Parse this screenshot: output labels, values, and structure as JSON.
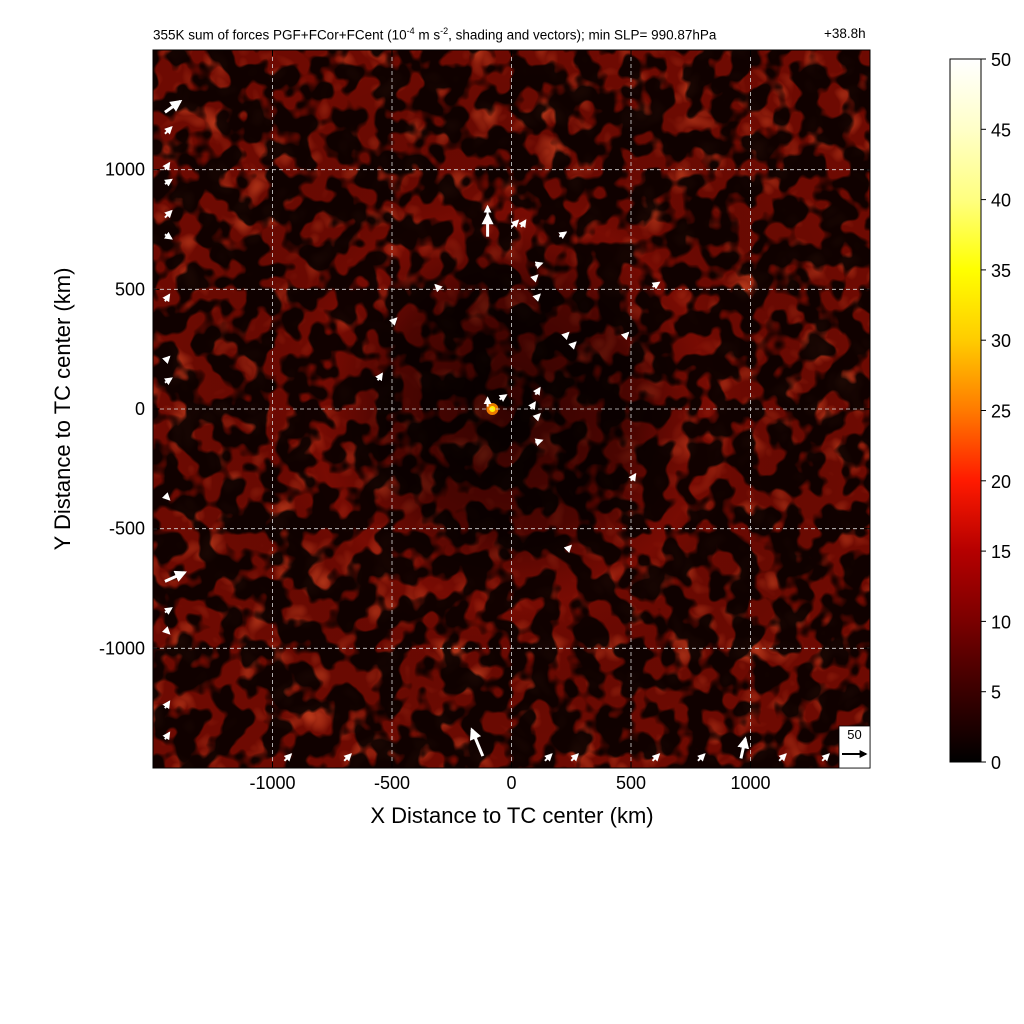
{
  "title": {
    "prefix": "355K sum of forces PGF+FCor+FCent (10",
    "exp1": "-4",
    "mid": " m s",
    "exp2": "-2",
    "suffix": ", shading and vectors); min SLP= 990.87hPa",
    "time": "+38.8h"
  },
  "chart_data": {
    "type": "heatmap",
    "xlabel": "X Distance to TC center (km)",
    "ylabel": "Y Distance to TC center (km)",
    "xlim": [
      -1500,
      1500
    ],
    "ylim": [
      -1500,
      1500
    ],
    "xticks": [
      -1000,
      -500,
      0,
      500,
      1000
    ],
    "yticks": [
      -1000,
      -500,
      0,
      500,
      1000
    ],
    "xtick_labels": [
      "-1000",
      "-500",
      "0",
      "500",
      "1000"
    ],
    "ytick_labels": [
      "-1000",
      "-500",
      "0",
      "500",
      "1000"
    ],
    "grid": true,
    "colorbar": {
      "range": [
        0,
        50
      ],
      "ticks": [
        0,
        5,
        10,
        15,
        20,
        25,
        30,
        35,
        40,
        45,
        50
      ],
      "tick_labels": [
        "0",
        "5",
        "10",
        "15",
        "20",
        "25",
        "30",
        "35",
        "40",
        "45",
        "50"
      ],
      "colormap": [
        "#000000",
        "#3a0000",
        "#7a0000",
        "#b50000",
        "#ff1a00",
        "#ff7a00",
        "#ffcc00",
        "#ffff00",
        "#ffff80",
        "#ffffc8",
        "#ffffff"
      ],
      "colormap_stops": [
        0,
        5,
        10,
        15,
        20,
        25,
        30,
        35,
        40,
        45,
        50
      ]
    },
    "max_feature": {
      "x": -80,
      "y": 0,
      "value": 30
    },
    "vector_reference": {
      "label": "50",
      "magnitude": 50
    },
    "vectors": [
      {
        "x": -100,
        "y": 720,
        "u": 0,
        "v": 1.0
      },
      {
        "x": -100,
        "y": 810,
        "u": 0,
        "v": 0.4
      },
      {
        "x": 0,
        "y": 760,
        "u": 0.3,
        "v": 0.3
      },
      {
        "x": 40,
        "y": 760,
        "u": 0.2,
        "v": 0.3
      },
      {
        "x": 200,
        "y": 720,
        "u": 0.3,
        "v": 0.2
      },
      {
        "x": 100,
        "y": 600,
        "u": 0.3,
        "v": 0.1
      },
      {
        "x": 90,
        "y": 540,
        "u": 0.2,
        "v": 0.2
      },
      {
        "x": 100,
        "y": 460,
        "u": 0.2,
        "v": 0.2
      },
      {
        "x": -300,
        "y": 500,
        "u": -0.2,
        "v": 0.2
      },
      {
        "x": 590,
        "y": 510,
        "u": 0.3,
        "v": 0.2
      },
      {
        "x": -500,
        "y": 360,
        "u": 0.2,
        "v": 0.2
      },
      {
        "x": 220,
        "y": 300,
        "u": 0.2,
        "v": 0.2
      },
      {
        "x": 250,
        "y": 260,
        "u": 0.2,
        "v": 0.2
      },
      {
        "x": 470,
        "y": 300,
        "u": 0.2,
        "v": 0.2
      },
      {
        "x": -560,
        "y": 120,
        "u": 0.2,
        "v": 0.3
      },
      {
        "x": 100,
        "y": 60,
        "u": 0.2,
        "v": 0.3
      },
      {
        "x": -100,
        "y": 10,
        "u": 0,
        "v": 0.4
      },
      {
        "x": -50,
        "y": 40,
        "u": 0.3,
        "v": 0.2
      },
      {
        "x": 80,
        "y": 0,
        "u": 0.2,
        "v": 0.3
      },
      {
        "x": 100,
        "y": -40,
        "u": 0.2,
        "v": 0.2
      },
      {
        "x": 100,
        "y": -140,
        "u": 0.3,
        "v": 0.1
      },
      {
        "x": 500,
        "y": -300,
        "u": 0.2,
        "v": 0.3
      },
      {
        "x": 230,
        "y": -590,
        "u": 0.2,
        "v": 0.2
      },
      {
        "x": -1450,
        "y": 1240,
        "u": 0.7,
        "v": 0.5
      },
      {
        "x": -1450,
        "y": 1150,
        "u": 0.3,
        "v": 0.3
      },
      {
        "x": -1450,
        "y": 1000,
        "u": 0.2,
        "v": 0.3
      },
      {
        "x": -1450,
        "y": 940,
        "u": 0.3,
        "v": 0.2
      },
      {
        "x": -1450,
        "y": 800,
        "u": 0.3,
        "v": 0.3
      },
      {
        "x": -1450,
        "y": 730,
        "u": 0.3,
        "v": -0.2
      },
      {
        "x": -1450,
        "y": 450,
        "u": 0.2,
        "v": 0.3
      },
      {
        "x": -1450,
        "y": 200,
        "u": 0.2,
        "v": 0.2
      },
      {
        "x": -1450,
        "y": 110,
        "u": 0.3,
        "v": 0.2
      },
      {
        "x": -1450,
        "y": -360,
        "u": 0.2,
        "v": -0.2
      },
      {
        "x": -1450,
        "y": -720,
        "u": 0.9,
        "v": 0.4
      },
      {
        "x": -1450,
        "y": -850,
        "u": 0.3,
        "v": 0.2
      },
      {
        "x": -1450,
        "y": -920,
        "u": 0.2,
        "v": -0.2
      },
      {
        "x": -1450,
        "y": -1250,
        "u": 0.2,
        "v": 0.3
      },
      {
        "x": -1450,
        "y": -1380,
        "u": 0.2,
        "v": 0.3
      },
      {
        "x": -120,
        "y": -1450,
        "u": -0.5,
        "v": 1.2
      },
      {
        "x": 960,
        "y": -1460,
        "u": 0.2,
        "v": 0.9
      },
      {
        "x": 590,
        "y": -1470,
        "u": 0.3,
        "v": 0.3
      },
      {
        "x": 780,
        "y": -1470,
        "u": 0.3,
        "v": 0.3
      },
      {
        "x": 1120,
        "y": -1470,
        "u": 0.3,
        "v": 0.3
      },
      {
        "x": 1300,
        "y": -1470,
        "u": 0.3,
        "v": 0.3
      },
      {
        "x": -950,
        "y": -1470,
        "u": 0.3,
        "v": 0.3
      },
      {
        "x": -700,
        "y": -1470,
        "u": 0.3,
        "v": 0.3
      },
      {
        "x": 250,
        "y": -1470,
        "u": 0.3,
        "v": 0.3
      },
      {
        "x": 140,
        "y": -1470,
        "u": 0.3,
        "v": 0.3
      }
    ]
  }
}
